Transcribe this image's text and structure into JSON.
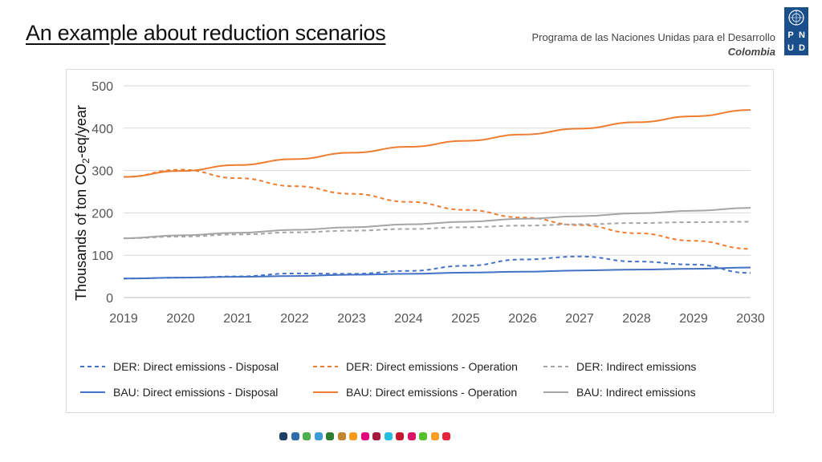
{
  "header": {
    "title": "An example about reduction scenarios",
    "org_line": "Programa de las Naciones Unidas para el Desarrollo",
    "country": "Colombia",
    "logo_letters": [
      "P",
      "N",
      "U",
      "D"
    ]
  },
  "chart_data": {
    "type": "line",
    "title": "",
    "xlabel": "",
    "ylabel_main": "Thousands of ton CO",
    "ylabel_sub": "2",
    "ylabel_end": "-eq/year",
    "x": [
      2019,
      2020,
      2021,
      2022,
      2023,
      2024,
      2025,
      2026,
      2027,
      2028,
      2029,
      2030
    ],
    "ylim": [
      0,
      500
    ],
    "yticks": [
      0,
      100,
      200,
      300,
      400,
      500
    ],
    "grid": true,
    "legend_position": "bottom",
    "series": [
      {
        "name": "DER: Direct emissions - Disposal",
        "color": "#4472c4",
        "dashed": true,
        "values": [
          45,
          47,
          50,
          57,
          56,
          63,
          75,
          90,
          97,
          85,
          78,
          58
        ]
      },
      {
        "name": "DER: Direct emissions - Operation",
        "color": "#ed7d31",
        "dashed": true,
        "values": [
          285,
          302,
          282,
          263,
          245,
          226,
          207,
          189,
          171,
          152,
          134,
          115
        ]
      },
      {
        "name": "DER: Indirect emissions",
        "color": "#a5a5a5",
        "dashed": true,
        "values": [
          140,
          144,
          149,
          154,
          158,
          162,
          166,
          170,
          173,
          176,
          178,
          179
        ]
      },
      {
        "name": "BAU: Direct emissions - Disposal",
        "color": "#4472c4",
        "dashed": false,
        "values": [
          45,
          47,
          49,
          51,
          54,
          56,
          59,
          61,
          64,
          66,
          68,
          71
        ]
      },
      {
        "name": "BAU: Direct emissions - Operation",
        "color": "#ed7d31",
        "dashed": false,
        "values": [
          285,
          299,
          313,
          327,
          342,
          356,
          370,
          385,
          399,
          414,
          428,
          443
        ]
      },
      {
        "name": "BAU: Indirect emissions",
        "color": "#a5a5a5",
        "dashed": false,
        "values": [
          140,
          147,
          153,
          160,
          166,
          173,
          179,
          186,
          192,
          199,
          205,
          212
        ]
      }
    ]
  },
  "sdg_colors": [
    "#1e3f66",
    "#2f6ea8",
    "#4caf50",
    "#3e9bd6",
    "#2e7d32",
    "#c2862e",
    "#f29b1d",
    "#e5007e",
    "#a21942",
    "#26bde2",
    "#c5192d",
    "#dd1367",
    "#56c02b",
    "#fd9d24",
    "#e5243b"
  ]
}
